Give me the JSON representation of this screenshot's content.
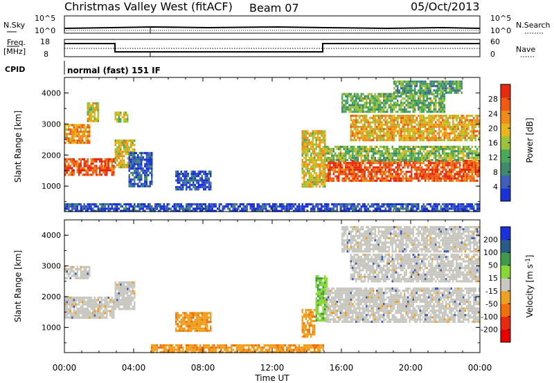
{
  "header": {
    "title": "Christmas Valley West (fitACF)",
    "beam": "Beam 07",
    "date": "05/Oct/2013"
  },
  "nsky_panel": {
    "label": "N.Sky",
    "right_label": "N.Search",
    "left_ticks": [
      "10^5",
      "10^0"
    ],
    "right_ticks": [
      "10^5",
      "10^0"
    ]
  },
  "freq_panel": {
    "label_line1": "Freq.",
    "label_line2": "[MHz]",
    "left_ticks": [
      "18",
      "8"
    ],
    "right_ticks": [
      "60",
      "0"
    ],
    "right_label": "Nave"
  },
  "cpid_panel": {
    "label": "CPID",
    "program": "normal (fast) 151 IF"
  },
  "x_axis": {
    "label": "Time UT",
    "ticks": [
      "00:00",
      "04:00",
      "08:00",
      "12:00",
      "16:00",
      "20:00",
      "00:00"
    ]
  },
  "chart_data": [
    {
      "type": "heatmap",
      "name": "power",
      "ylabel": "Slant Range [km]",
      "yticks": [
        "1000",
        "2000",
        "3000",
        "4000"
      ],
      "ylim": [
        180,
        4500
      ],
      "xlim_hours": [
        0,
        24
      ],
      "colorbar": {
        "label": "Power [dB]",
        "ticks": [
          "4",
          "8",
          "12",
          "16",
          "20",
          "24",
          "28"
        ],
        "range": [
          0,
          32
        ],
        "colors": [
          "#1a33d9",
          "#3f5fb8",
          "#3f8a6e",
          "#4aa85a",
          "#9ac23a",
          "#e6b61a",
          "#f08a1a",
          "#f05a14",
          "#e62a10"
        ]
      },
      "regions": [
        {
          "t": [
            0.0,
            2.9
          ],
          "r": [
            1350,
            1900
          ],
          "level": 0.85
        },
        {
          "t": [
            0.0,
            1.5
          ],
          "r": [
            2400,
            3000
          ],
          "level": 0.7
        },
        {
          "t": [
            1.3,
            2.0
          ],
          "r": [
            3100,
            3700
          ],
          "level": 0.55
        },
        {
          "t": [
            2.9,
            4.1
          ],
          "r": [
            1600,
            2500
          ],
          "level": 0.6
        },
        {
          "t": [
            2.9,
            3.7
          ],
          "r": [
            3100,
            3400
          ],
          "level": 0.5
        },
        {
          "t": [
            3.7,
            5.1
          ],
          "r": [
            1000,
            2100
          ],
          "level": 0.15
        },
        {
          "t": [
            6.4,
            8.5
          ],
          "r": [
            900,
            1500
          ],
          "level": 0.1
        },
        {
          "t": [
            13.7,
            15.1
          ],
          "r": [
            1000,
            2800
          ],
          "level": 0.6
        },
        {
          "t": [
            15.1,
            24.0
          ],
          "r": [
            1200,
            1850
          ],
          "level": 0.85
        },
        {
          "t": [
            15.1,
            24.0
          ],
          "r": [
            1850,
            2300
          ],
          "level": 0.45
        },
        {
          "t": [
            16.5,
            24.0
          ],
          "r": [
            2500,
            3300
          ],
          "level": 0.65
        },
        {
          "t": [
            16.0,
            22.0
          ],
          "r": [
            3400,
            4000
          ],
          "level": 0.4
        },
        {
          "t": [
            19.0,
            23.0
          ],
          "r": [
            4000,
            4400
          ],
          "level": 0.35
        },
        {
          "t": [
            0.0,
            24.0
          ],
          "r": [
            180,
            450
          ],
          "level": 0.1
        }
      ]
    },
    {
      "type": "heatmap",
      "name": "velocity",
      "ylabel": "Slant Range [km]",
      "yticks": [
        "1000",
        "2000",
        "3000",
        "4000"
      ],
      "ylim": [
        180,
        4500
      ],
      "xlim_hours": [
        0,
        24
      ],
      "colorbar": {
        "label": "Velocity [m s^-1]",
        "ticks": [
          "200",
          "100",
          "50",
          "15",
          "-15",
          "-50",
          "-100",
          "-200"
        ],
        "colors": [
          "#1a33d9",
          "#2a5a88",
          "#3f9a4a",
          "#8ad63a",
          "#c8c8c0",
          "#f0a020",
          "#f07010",
          "#e62a10",
          "#e60000"
        ]
      },
      "regions": [
        {
          "t": [
            0.0,
            2.9
          ],
          "r": [
            1350,
            2000
          ],
          "class": "gray"
        },
        {
          "t": [
            0.0,
            1.5
          ],
          "r": [
            2600,
            3000
          ],
          "class": "gray"
        },
        {
          "t": [
            2.9,
            4.1
          ],
          "r": [
            1600,
            2500
          ],
          "class": "gray"
        },
        {
          "t": [
            6.4,
            8.5
          ],
          "r": [
            900,
            1500
          ],
          "class": "orange"
        },
        {
          "t": [
            13.7,
            14.5
          ],
          "r": [
            700,
            1600
          ],
          "class": "orange"
        },
        {
          "t": [
            14.5,
            15.2
          ],
          "r": [
            1200,
            2700
          ],
          "class": "green"
        },
        {
          "t": [
            15.1,
            24.0
          ],
          "r": [
            1200,
            2300
          ],
          "class": "gray"
        },
        {
          "t": [
            16.5,
            24.0
          ],
          "r": [
            2500,
            3400
          ],
          "class": "gray"
        },
        {
          "t": [
            16.0,
            24.0
          ],
          "r": [
            3500,
            4300
          ],
          "class": "gray"
        },
        {
          "t": [
            5.0,
            15.0
          ],
          "r": [
            180,
            450
          ],
          "class": "orange"
        }
      ]
    }
  ]
}
